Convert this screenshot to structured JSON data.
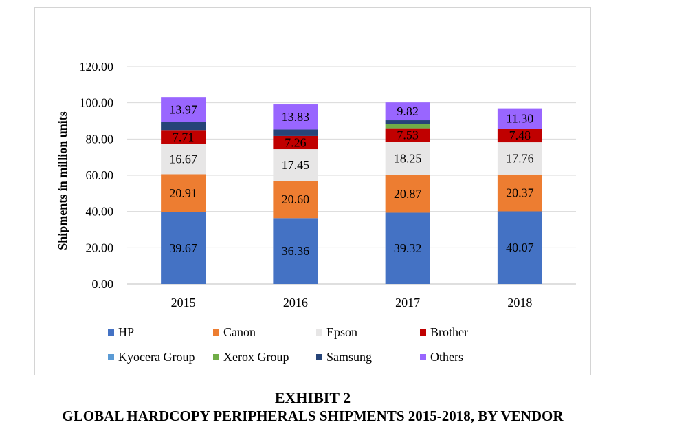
{
  "chart_data": {
    "type": "bar",
    "stacked": true,
    "categories": [
      "2015",
      "2016",
      "2017",
      "2018"
    ],
    "ylabel": "Shipments in million units",
    "ylim": [
      0,
      120
    ],
    "yticks": [
      "0.00",
      "20.00",
      "40.00",
      "60.00",
      "80.00",
      "100.00",
      "120.00"
    ],
    "grid": true,
    "legend_position": "bottom",
    "series": [
      {
        "name": "HP",
        "color": "#4472c4",
        "values": [
          39.67,
          36.36,
          39.32,
          40.07
        ],
        "labels": [
          "39.67",
          "36.36",
          "39.32",
          "40.07"
        ]
      },
      {
        "name": "Canon",
        "color": "#ed7d31",
        "values": [
          20.91,
          20.6,
          20.87,
          20.37
        ],
        "labels": [
          "20.91",
          "20.60",
          "20.87",
          "20.37"
        ]
      },
      {
        "name": "Epson",
        "color": "#e7e6e6",
        "values": [
          16.67,
          17.45,
          18.25,
          17.76
        ],
        "labels": [
          "16.67",
          "17.45",
          "18.25",
          "17.76"
        ]
      },
      {
        "name": "Brother",
        "color": "#c00000",
        "values": [
          7.71,
          7.26,
          7.53,
          7.48
        ],
        "labels": [
          "7.71",
          "7.26",
          "7.53",
          "7.48"
        ]
      },
      {
        "name": "Kyocera Group",
        "color": "#5b9bd5",
        "values": [
          0,
          0,
          0,
          0
        ],
        "labels": [
          "",
          "",
          "",
          ""
        ]
      },
      {
        "name": "Xerox Group",
        "color": "#70ad47",
        "values": [
          0,
          0,
          2.3,
          0
        ],
        "labels": [
          "",
          "",
          "",
          ""
        ]
      },
      {
        "name": "Samsung",
        "color": "#264478",
        "values": [
          4.3,
          3.6,
          2.1,
          0
        ],
        "labels": [
          "",
          "",
          "",
          ""
        ]
      },
      {
        "name": "Others",
        "color": "#9966ff",
        "values": [
          13.97,
          13.83,
          9.82,
          11.3
        ],
        "labels": [
          "13.97",
          "13.83",
          "9.82",
          "11.30"
        ]
      }
    ]
  },
  "caption": {
    "exhibit": "EXHIBIT 2",
    "title": "GLOBAL HARDCOPY PERIPHERALS SHIPMENTS 2015-2018, BY VENDOR"
  }
}
